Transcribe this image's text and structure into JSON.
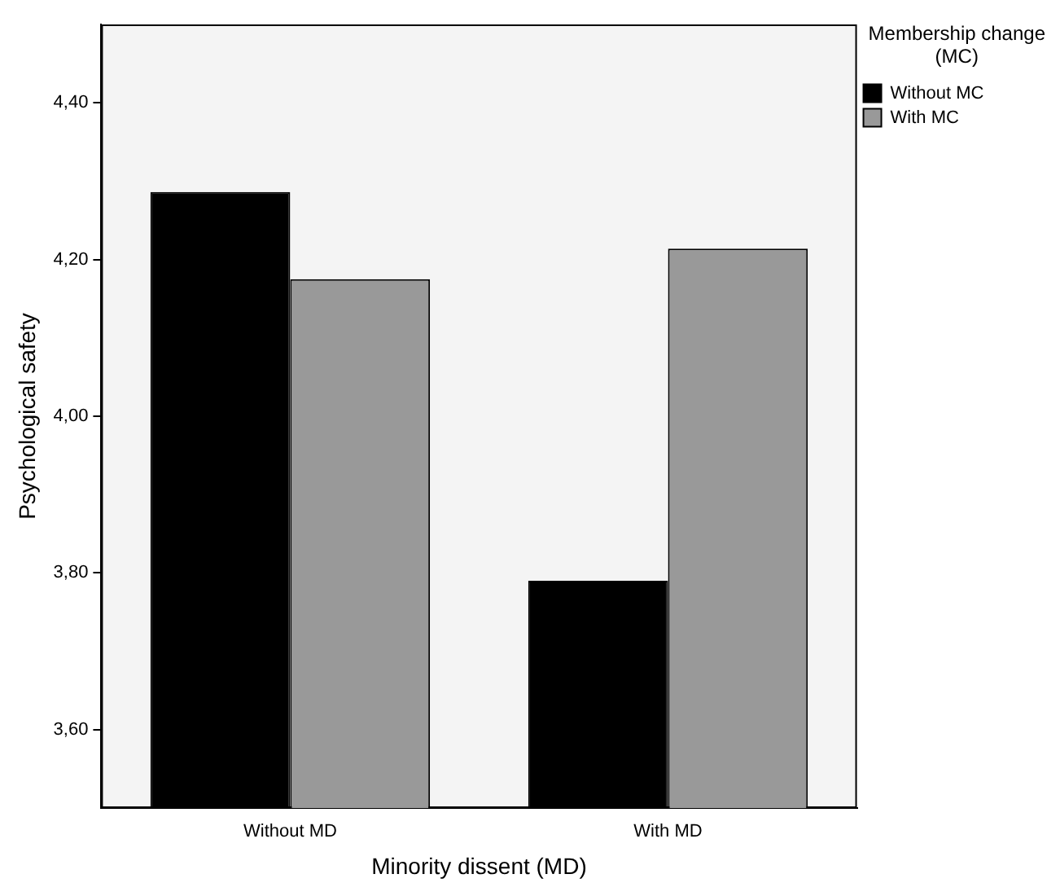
{
  "chart_data": {
    "type": "bar",
    "xlabel": "Minority dissent (MD)",
    "ylabel": "Psychological safety",
    "legend_title": "Membership change (MC)",
    "legend": "top right",
    "grid": false,
    "categories": [
      "Without MD",
      "With MD"
    ],
    "series": [
      {
        "name": "Without MC",
        "color": "#000000",
        "values": [
          4.286,
          3.79
        ]
      },
      {
        "name": "With MC",
        "color": "#999999",
        "values": [
          4.175,
          4.214
        ]
      }
    ],
    "ylim": [
      3.5,
      4.5
    ],
    "yticks": [
      {
        "value": 3.6,
        "label": "3,60"
      },
      {
        "value": 3.8,
        "label": "3,80"
      },
      {
        "value": 4.0,
        "label": "4,00"
      },
      {
        "value": 4.2,
        "label": "4,20"
      },
      {
        "value": 4.4,
        "label": "4,40"
      }
    ]
  }
}
